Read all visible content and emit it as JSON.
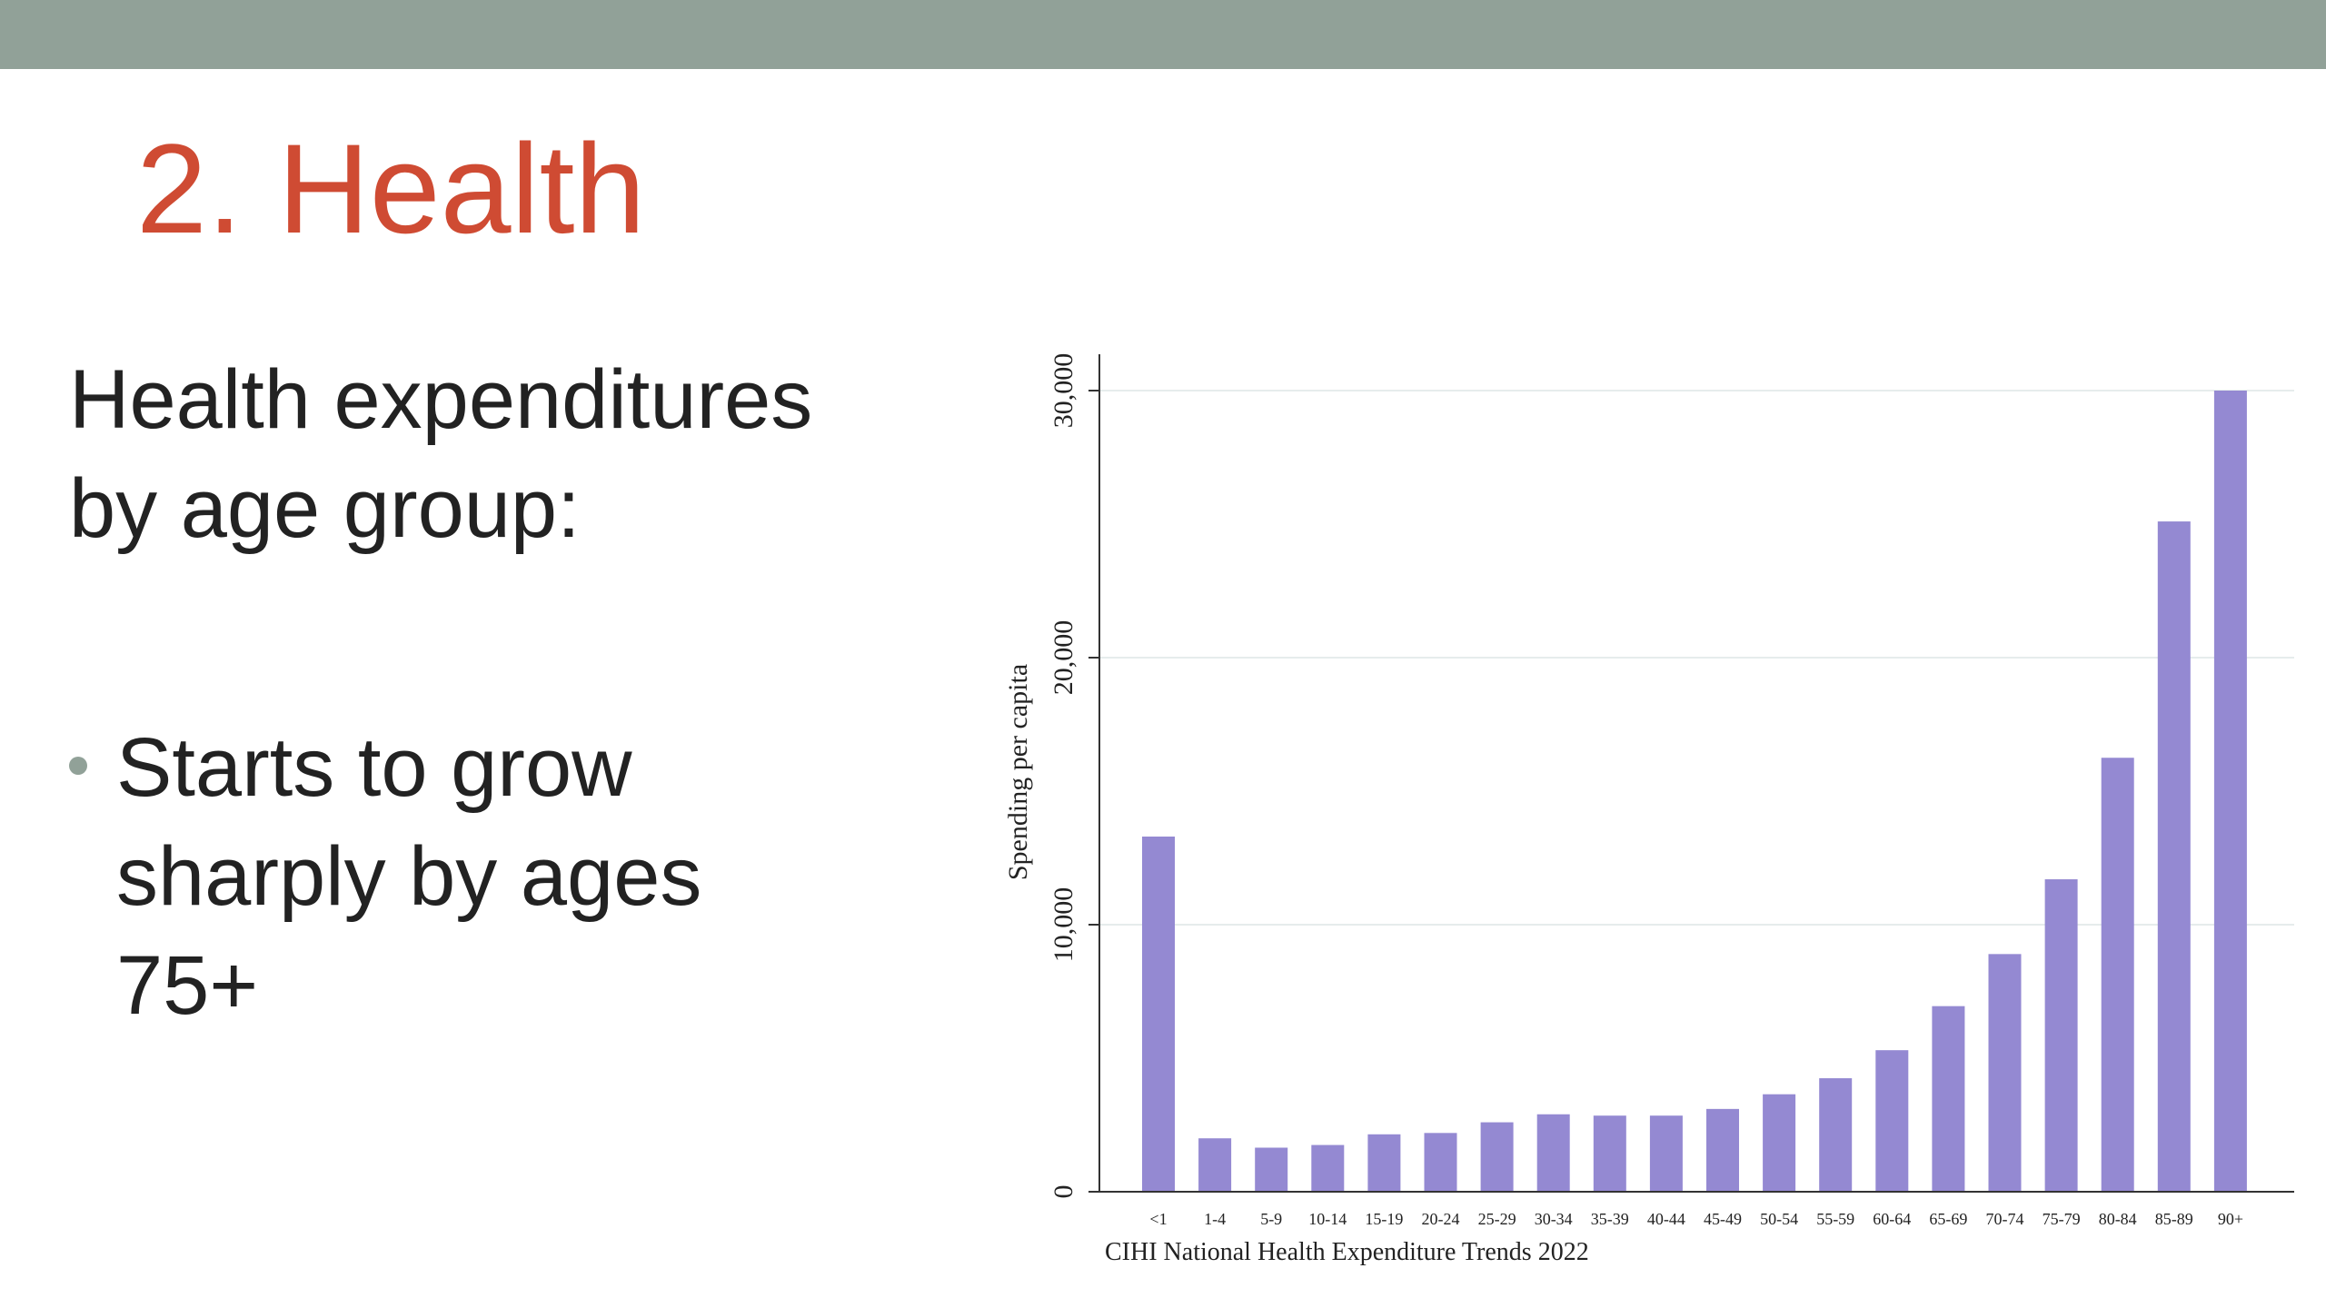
{
  "slide": {
    "title": "2. Health",
    "intro_line1": "Health expenditures",
    "intro_line2": "by age group:",
    "bullet_line1": "Starts to grow",
    "bullet_line2": "sharply by ages",
    "bullet_line3": "75+"
  },
  "colors": {
    "band": "#91a198",
    "title": "#cf4b33",
    "bar": "#9489d2"
  },
  "chart_data": {
    "type": "bar",
    "title": "",
    "xlabel": "",
    "ylabel": "Spending per capita",
    "source_note": "CIHI National Health Expenditure Trends 2022",
    "categories": [
      "<1",
      "1-4",
      "5-9",
      "10-14",
      "15-19",
      "20-24",
      "25-29",
      "30-34",
      "35-39",
      "40-44",
      "45-49",
      "50-54",
      "55-59",
      "60-64",
      "65-69",
      "70-74",
      "75-79",
      "80-84",
      "85-89",
      "90+"
    ],
    "values": [
      13300,
      2000,
      1650,
      1750,
      2150,
      2200,
      2600,
      2900,
      2850,
      2850,
      3100,
      3650,
      4250,
      5300,
      6950,
      8900,
      11700,
      16250,
      25100,
      30000
    ],
    "ylim": [
      0,
      30000
    ],
    "yticks": [
      0,
      10000,
      20000,
      30000
    ],
    "ytick_labels": [
      "0",
      "10,000",
      "20,000",
      "30,000"
    ],
    "grid": true,
    "legend": "none"
  }
}
